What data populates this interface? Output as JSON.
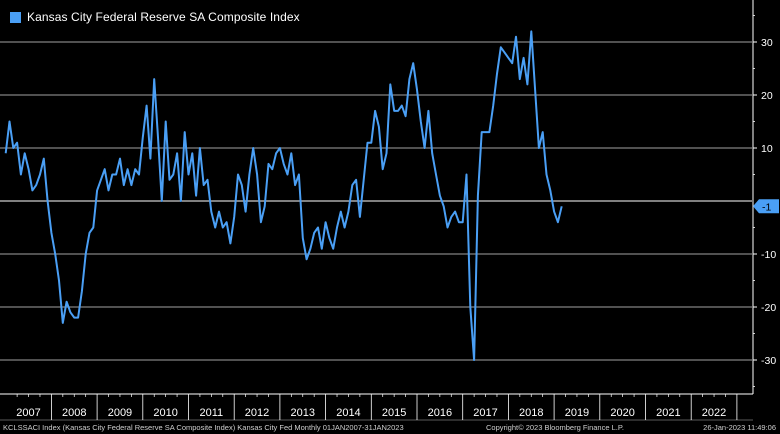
{
  "legend": {
    "label": "Kansas City Federal Reserve SA Composite Index"
  },
  "footer": {
    "left": "KCLSSACI Index (Kansas City Federal Reserve SA Composite Index) Kansas City Fed  Monthly 01JAN2007-31JAN2023",
    "center": "Copyright© 2023 Bloomberg Finance L.P.",
    "right": "26-Jan-2023 11:49:06"
  },
  "colors": {
    "line": "#4a9ff5",
    "grid": "#ffffff",
    "background": "#000000",
    "last_value_bg": "#4a9ff5"
  },
  "chart_data": {
    "type": "line",
    "title": "Kansas City Federal Reserve SA Composite Index",
    "xlabel": "",
    "ylabel": "",
    "x_start": "2007-01",
    "x_end": "2023-01",
    "ylim": [
      -35,
      35
    ],
    "yticks": [
      30,
      20,
      10,
      -10,
      -20,
      -30
    ],
    "ytick_labels": [
      "30",
      "20",
      "10",
      "-10",
      "-20",
      "-30"
    ],
    "zero_line": true,
    "xtick_labels": [
      "2007",
      "2008",
      "2009",
      "2010",
      "2011",
      "2012",
      "2013",
      "2014",
      "2015",
      "2016",
      "2017",
      "2018",
      "2019",
      "2020",
      "2021",
      "2022"
    ],
    "last_value": -1,
    "last_value_label": "-1",
    "series": [
      {
        "name": "Kansas City Federal Reserve SA Composite Index",
        "values": [
          9,
          15,
          10,
          11,
          5,
          9,
          6,
          2,
          3,
          5,
          8,
          0,
          -6,
          -10,
          -15,
          -23,
          -19,
          -21,
          -22,
          -22,
          -17,
          -10,
          -6,
          -5,
          2,
          4,
          6,
          2,
          5,
          5,
          8,
          3,
          6,
          3,
          6,
          5,
          12,
          18,
          8,
          23,
          12,
          0,
          15,
          4,
          5,
          9,
          0,
          13,
          5,
          9,
          1,
          10,
          3,
          4,
          -2,
          -5,
          -2,
          -5,
          -4,
          -8,
          -3,
          5,
          3,
          -2,
          5,
          10,
          5,
          -4,
          -1,
          7,
          6,
          9,
          10,
          7,
          5,
          9,
          3,
          5,
          -7,
          -11,
          -9,
          -6,
          -5,
          -9,
          -4,
          -7,
          -9,
          -5,
          -2,
          -5,
          -2,
          3,
          4,
          -3,
          4,
          11,
          11,
          17,
          14,
          6,
          9,
          22,
          17,
          17,
          18,
          16,
          23,
          26,
          21,
          15,
          10,
          17,
          9,
          5,
          1,
          -1,
          -5,
          -3,
          -2,
          -4,
          -4,
          5,
          -20,
          -30,
          1,
          13,
          13,
          13,
          18,
          24,
          29,
          28,
          27,
          26,
          31,
          23,
          27,
          22,
          32,
          21,
          10,
          13,
          5,
          2,
          -2,
          -4,
          -1
        ]
      }
    ]
  }
}
